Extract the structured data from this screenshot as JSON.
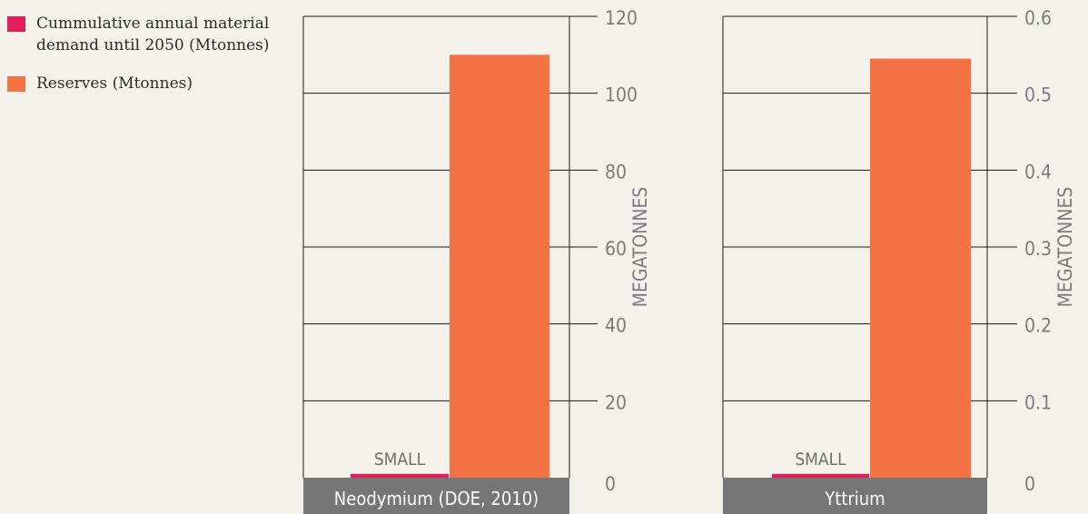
{
  "legend": [
    {
      "label": "Cummulative annual material demand until 2050 (Mtonnes)",
      "color": "#de1f5b"
    },
    {
      "label": "Reserves (Mtonnes)",
      "color": "#f47244"
    }
  ],
  "chart_data": [
    {
      "type": "bar",
      "categories": [
        "Neodymium (DOE, 2010)"
      ],
      "series": [
        {
          "name": "Cummulative annual material demand until 2050 (Mtonnes)",
          "values": [
            1
          ],
          "color": "#de1f5b",
          "annotation": "SMALL"
        },
        {
          "name": "Reserves (Mtonnes)",
          "values": [
            110
          ],
          "color": "#f47244"
        }
      ],
      "ylabel": "MEGATONNES",
      "ylim": [
        0,
        120
      ],
      "yticks": [
        "0",
        "20",
        "40",
        "60",
        "80",
        "100",
        "120"
      ],
      "tickValues": [
        0,
        20,
        40,
        60,
        80,
        100,
        120
      ],
      "grid": true
    },
    {
      "type": "bar",
      "categories": [
        "Yttrium"
      ],
      "series": [
        {
          "name": "Cummulative annual material demand until 2050 (Mtonnes)",
          "values": [
            0.005
          ],
          "color": "#de1f5b",
          "annotation": "SMALL"
        },
        {
          "name": "Reserves (Mtonnes)",
          "values": [
            0.545
          ],
          "color": "#f47244"
        }
      ],
      "ylabel": "MEGATONNES",
      "ylim": [
        0,
        0.6
      ],
      "yticks": [
        "0",
        "0.1",
        "0.2",
        "0.3",
        "0.4",
        "0.5",
        "0.6"
      ],
      "tickValues": [
        0,
        0.1,
        0.2,
        0.3,
        0.4,
        0.5,
        0.6
      ],
      "grid": true
    }
  ]
}
